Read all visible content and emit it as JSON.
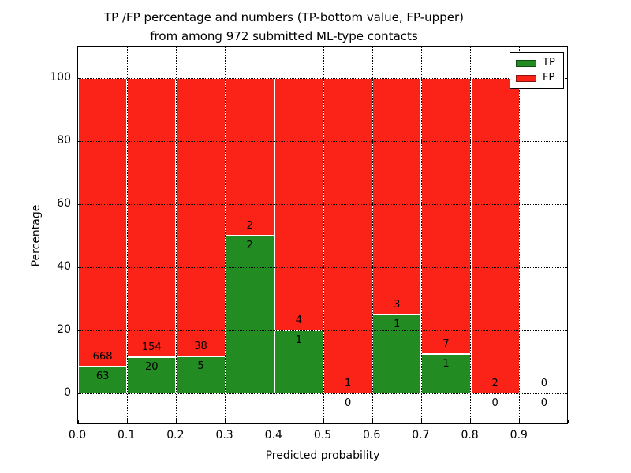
{
  "title": {
    "line1": "TP /FP percentage and numbers (TP-bottom value, FP-upper)",
    "line2": "from among 972 submitted ML-type contacts"
  },
  "axes": {
    "xlabel": "Predicted probability",
    "ylabel": "Percentage",
    "x_tick_labels": [
      "0.0",
      "0.1",
      "0.2",
      "0.3",
      "0.4",
      "0.5",
      "0.6",
      "0.7",
      "0.8",
      "0.9"
    ],
    "y_tick_labels": [
      "0",
      "20",
      "40",
      "60",
      "80",
      "100"
    ],
    "y_tick_values": [
      0,
      20,
      40,
      60,
      80,
      100
    ],
    "xlim": [
      0.0,
      1.0
    ],
    "ylim": [
      -10,
      110
    ],
    "grid_style": "dotted"
  },
  "legend": {
    "position": "upper-right",
    "entries": [
      {
        "label": "TP",
        "color": "#228b22"
      },
      {
        "label": "FP",
        "color": "#fb2318"
      }
    ]
  },
  "chart_data": {
    "type": "bar",
    "stacked": true,
    "unit": "percent",
    "total_contacts": 972,
    "bin_edges": [
      0.0,
      0.1,
      0.2,
      0.3,
      0.4,
      0.5,
      0.6,
      0.7,
      0.8,
      0.9,
      1.0
    ],
    "series": [
      {
        "name": "TP",
        "color": "#228b22",
        "counts": [
          63,
          20,
          5,
          2,
          1,
          0,
          1,
          1,
          0,
          0
        ],
        "pct": [
          8.62,
          11.49,
          11.63,
          50,
          20,
          0,
          25,
          12.5,
          0,
          null
        ]
      },
      {
        "name": "FP",
        "color": "#fb2318",
        "counts": [
          668,
          154,
          38,
          2,
          4,
          1,
          3,
          7,
          2,
          0
        ],
        "pct": [
          91.38,
          88.51,
          88.37,
          50,
          80,
          100,
          75,
          87.5,
          100,
          null
        ]
      }
    ]
  }
}
